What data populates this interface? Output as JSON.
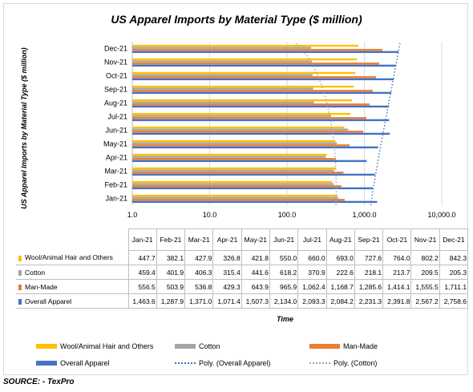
{
  "title": "US Apparel Imports by Material Type ($ million)",
  "source": "SOURCE: - TexPro",
  "chart_data": {
    "type": "bar",
    "orientation": "horizontal",
    "x_scale": "log",
    "xlim": [
      1,
      10000
    ],
    "x_ticks": [
      "1.0",
      "10.0",
      "100.0",
      "1,000.0",
      "10,000.0"
    ],
    "xlabel": "Time",
    "ylabel": "US Apparel Imports by Material Type ($ million)",
    "categories": [
      "Jan-21",
      "Feb-21",
      "Mar-21",
      "Apr-21",
      "May-21",
      "Jun-21",
      "Jul-21",
      "Aug-21",
      "Sep-21",
      "Oct-21",
      "Nov-21",
      "Dec-21"
    ],
    "series": [
      {
        "name": "Wool/Animal Hair and Others",
        "color": "#ffc000",
        "values": [
          447.7,
          382.1,
          427.9,
          326.8,
          421.8,
          550.0,
          660.0,
          693.0,
          727.6,
          764.0,
          802.2,
          842.3
        ],
        "labels": [
          "447.7",
          "382.1",
          "427.9",
          "326.8",
          "421.8",
          "550.0",
          "660.0",
          "693.0",
          "727.6",
          "764.0",
          "802.2",
          "842.3"
        ]
      },
      {
        "name": "Cotton",
        "color": "#a5a5a5",
        "values": [
          459.4,
          401.9,
          406.3,
          315.4,
          441.6,
          618.2,
          370.9,
          222.6,
          218.1,
          213.7,
          209.5,
          205.3
        ],
        "labels": [
          "459.4",
          "401.9",
          "406.3",
          "315.4",
          "441.6",
          "618.2",
          "370.9",
          "222.6",
          "218.1",
          "213.7",
          "209.5",
          "205.3"
        ]
      },
      {
        "name": "Man-Made",
        "color": "#ed7d31",
        "values": [
          556.5,
          503.9,
          536.8,
          429.3,
          643.9,
          965.9,
          1062.4,
          1168.7,
          1285.6,
          1414.1,
          1555.5,
          1711.1
        ],
        "labels": [
          "556.5",
          "503.9",
          "536.8",
          "429.3",
          "643.9",
          "965.9",
          "1,062.4",
          "1,168.7",
          "1,285.6",
          "1,414.1",
          "1,555.5",
          "1,711.1"
        ]
      },
      {
        "name": "Overall Apparel",
        "color": "#4472c4",
        "values": [
          1463.6,
          1287.9,
          1371.0,
          1071.4,
          1507.3,
          2134.0,
          2093.3,
          2084.2,
          2231.3,
          2391.8,
          2567.2,
          2758.6
        ],
        "labels": [
          "1,463.6",
          "1,287.9",
          "1,371.0",
          "1,071.4",
          "1,507.3",
          "2,134.0",
          "2,093.3",
          "2,084.2",
          "2,231.3",
          "2,391.8",
          "2,567.2",
          "2,758.6"
        ]
      }
    ],
    "trendlines": [
      {
        "name": "Poly. (Overall Apparel)",
        "color": "#4472c4",
        "style": "dotted"
      },
      {
        "name": "Poly. (Cotton)",
        "color": "#a5a5a5",
        "style": "dotted"
      }
    ],
    "legend_position": "bottom",
    "grid": "vertical"
  }
}
